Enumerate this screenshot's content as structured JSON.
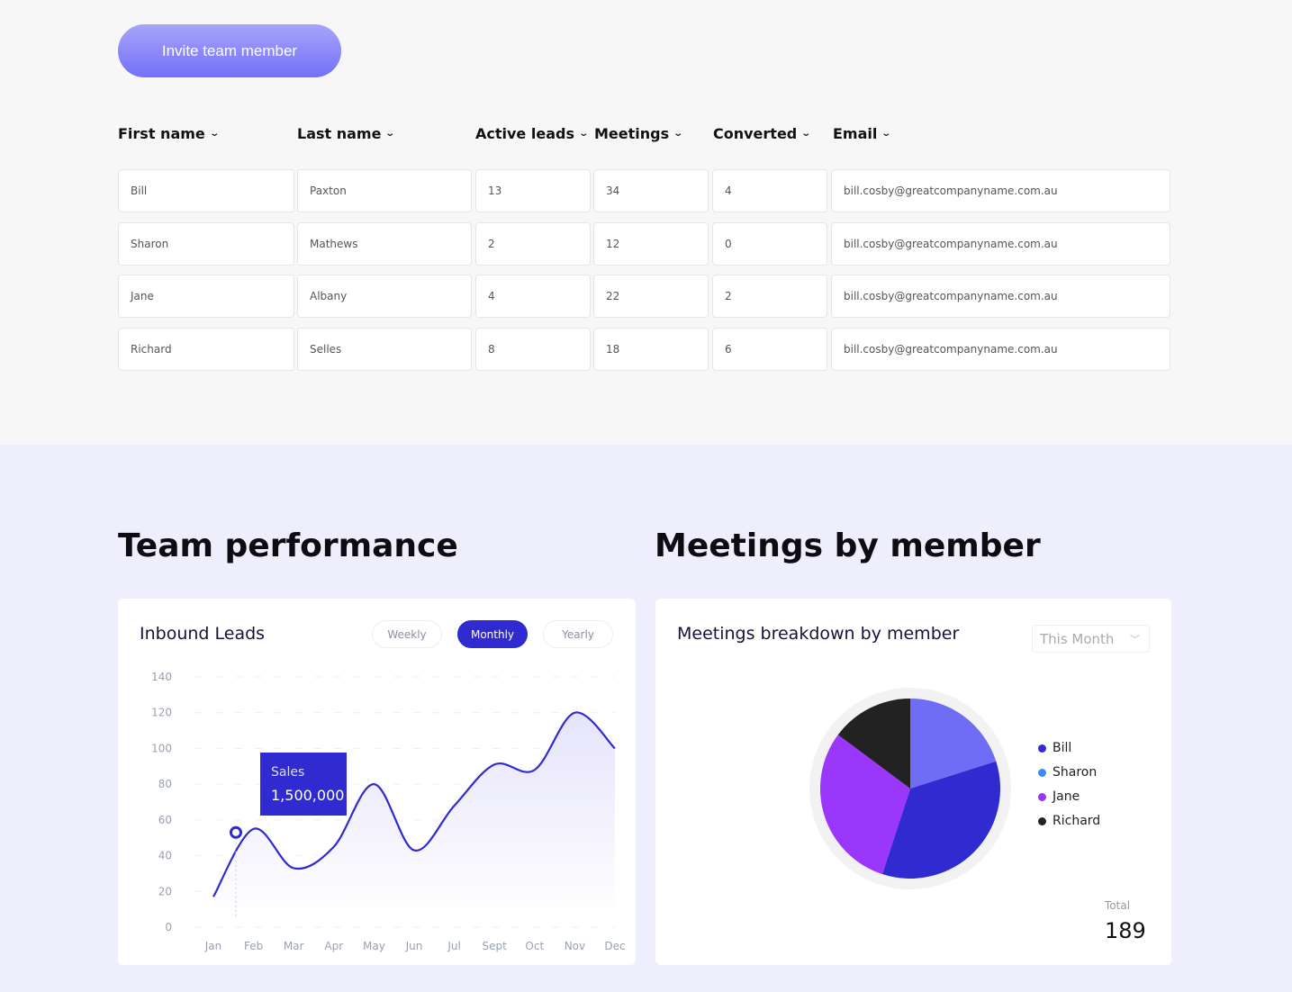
{
  "invite_button": "Invite team member",
  "table": {
    "columns": [
      "First name",
      "Last name",
      "Active leads",
      "Meetings",
      "Converted",
      "Email"
    ],
    "rows": [
      [
        "Bill",
        "Paxton",
        "13",
        "34",
        "4",
        "bill.cosby@greatcompanyname.com.au"
      ],
      [
        "Sharon",
        "Mathews",
        "2",
        "12",
        "0",
        "bill.cosby@greatcompanyname.com.au"
      ],
      [
        "Jane",
        "Albany",
        "4",
        "22",
        "2",
        "bill.cosby@greatcompanyname.com.au"
      ],
      [
        "Richard",
        "Selles",
        "8",
        "18",
        "6",
        "bill.cosby@greatcompanyname.com.au"
      ]
    ]
  },
  "sections": {
    "team_performance": "Team performance",
    "meetings_by_member": "Meetings by member"
  },
  "inbound": {
    "title": "Inbound Leads",
    "tabs": [
      "Weekly",
      "Monthly",
      "Yearly"
    ],
    "active_tab": "Monthly",
    "tooltip": {
      "label": "Sales",
      "value": "1,500,000"
    }
  },
  "meetings": {
    "title": "Meetings breakdown by member",
    "period": "This Month",
    "total_label": "Total",
    "total": "189"
  },
  "chart_data": [
    {
      "type": "line",
      "title": "Inbound Leads",
      "categories": [
        "Jan",
        "Feb",
        "Mar",
        "Apr",
        "May",
        "Jun",
        "Jul",
        "Sept",
        "Oct",
        "Nov",
        "Dec"
      ],
      "values": [
        17,
        55,
        33,
        45,
        80,
        43,
        68,
        91,
        88,
        120,
        100
      ],
      "yticks": [
        "0",
        "20",
        "40",
        "60",
        "80",
        "100",
        "120",
        "140"
      ],
      "ylim": [
        0,
        140
      ],
      "grid": true,
      "highlight_value": 53,
      "color": "#2f2bd0"
    },
    {
      "type": "pie",
      "title": "Meetings breakdown by member",
      "slices": [
        {
          "name": "Sharon-slice",
          "value": 38,
          "color": "#6f6cf5"
        },
        {
          "name": "Bill-slice",
          "value": 66,
          "color": "#2f2bd0"
        },
        {
          "name": "Jane-slice",
          "value": 57,
          "color": "#9b36fb"
        },
        {
          "name": "Richard-slice",
          "value": 28,
          "color": "#222222"
        }
      ],
      "legend": [
        {
          "label": "Bill",
          "color": "#2f2bd0"
        },
        {
          "label": "Sharon",
          "color": "#3a8bf7"
        },
        {
          "label": "Jane",
          "color": "#9b36fb"
        },
        {
          "label": "Richard",
          "color": "#222222"
        }
      ]
    }
  ]
}
